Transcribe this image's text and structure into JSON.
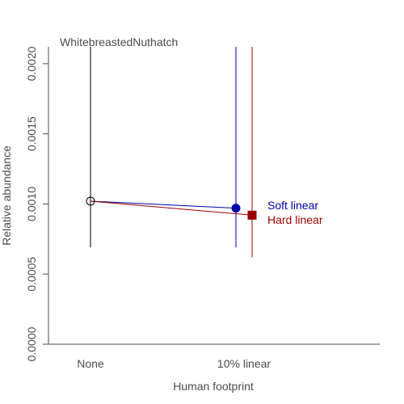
{
  "chart_data": {
    "type": "scatter",
    "title": "WhitebreastedNuthatch",
    "xlabel": "Human footprint",
    "ylabel": "Relative abundance",
    "categories": [
      "None",
      "10% linear"
    ],
    "ylim": [
      0,
      0.00212
    ],
    "y_ticks": [
      0.0,
      0.0005,
      0.001,
      0.0015,
      0.002
    ],
    "y_tick_labels": [
      "0.0000",
      "0.0005",
      "0.0010",
      "0.0015",
      "0.0020"
    ],
    "baseline": {
      "category": "None",
      "value": 0.00102,
      "ci_lower": 0.00069,
      "ci_upper": 0.00212,
      "marker": "open-circle",
      "color": "#000000"
    },
    "series": [
      {
        "name": "Soft linear",
        "color": "#0000aa",
        "marker": "circle",
        "value": 0.00097,
        "ci_lower": 0.00069,
        "ci_upper": 0.00212
      },
      {
        "name": "Hard linear",
        "color": "#990000",
        "marker": "square",
        "value": 0.00092,
        "ci_lower": 0.00062,
        "ci_upper": 0.00212
      }
    ],
    "legend_position": "right of points",
    "grid": false
  }
}
